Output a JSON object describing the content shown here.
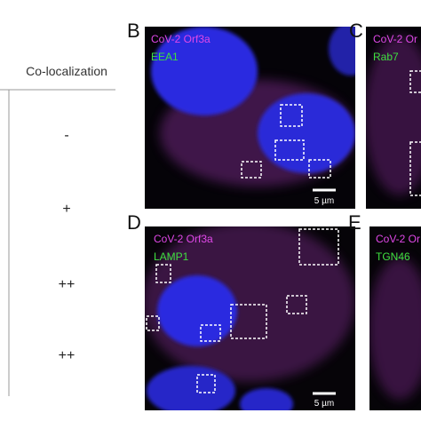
{
  "table": {
    "header": "Co-localization",
    "rows": [
      "-",
      "+",
      "++",
      "++"
    ]
  },
  "panels": [
    {
      "label": "B",
      "stain1": "CoV-2 Orf3a",
      "stain2": "EEA1",
      "scale": "5 µm"
    },
    {
      "label": "C",
      "stain1": "CoV-2 Or",
      "stain2": "Rab7"
    },
    {
      "label": "D",
      "stain1": "CoV-2 Orf3a",
      "stain2": "LAMP1",
      "scale": "5 µm"
    },
    {
      "label": "E",
      "stain1": "CoV-2 Or",
      "stain2": "TGN46"
    }
  ]
}
